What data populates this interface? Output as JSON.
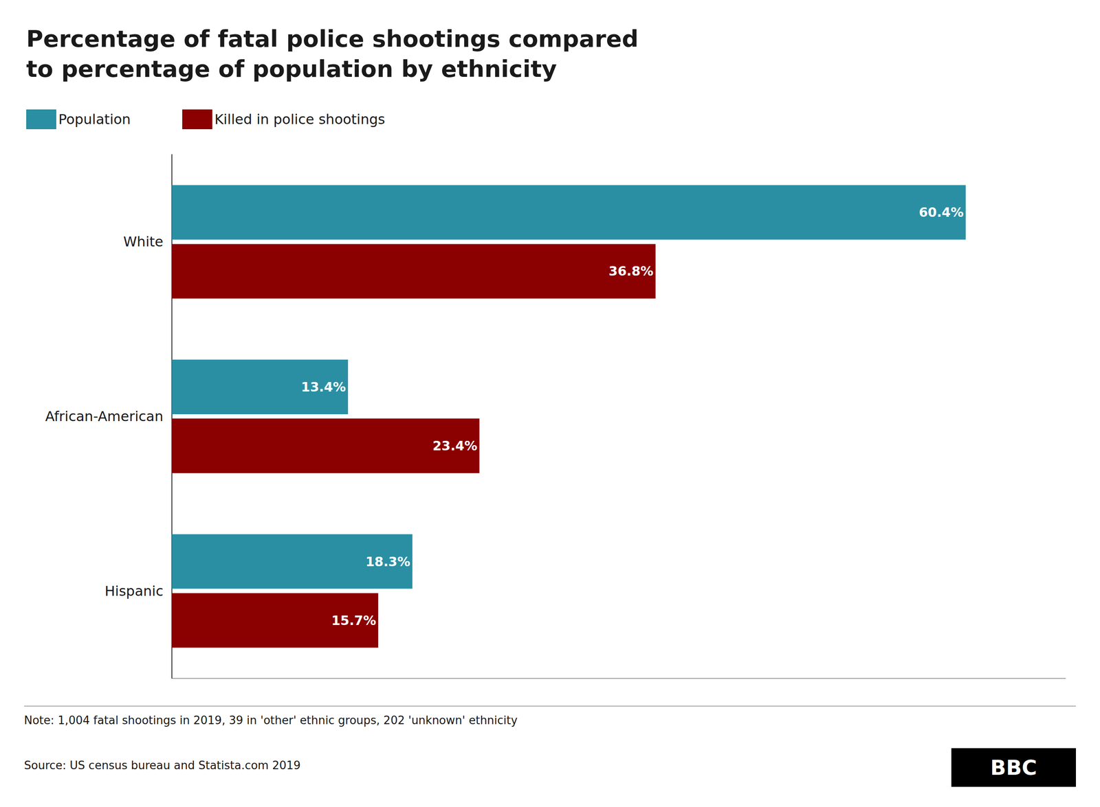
{
  "chart_data": {
    "type": "bar",
    "orientation": "horizontal",
    "title": "Percentage of fatal police shootings compared\nto percentage of population by ethnicity",
    "categories": [
      "White",
      "African-American",
      "Hispanic"
    ],
    "series": [
      {
        "name": "Population",
        "color": "#2a8fa3",
        "values": [
          60.4,
          13.4,
          18.3
        ],
        "value_labels": [
          "60.4%",
          "13.4%",
          "18.3%"
        ]
      },
      {
        "name": "Killed in police shootings",
        "color": "#8b0000",
        "values": [
          36.8,
          23.4,
          15.7
        ],
        "value_labels": [
          "36.8%",
          "23.4%",
          "15.7%"
        ]
      }
    ],
    "xlim": [
      0,
      68
    ],
    "data_labels": true,
    "tick_labels": "y",
    "grid": false,
    "legend": "upper left",
    "annotations": [
      "Note: 1,004 fatal shootings in 2019, 39 in 'other' ethnic groups, 202 'unknown' ethnicity",
      "Source: US census bureau and Statista.com 2019",
      "BBC"
    ]
  }
}
